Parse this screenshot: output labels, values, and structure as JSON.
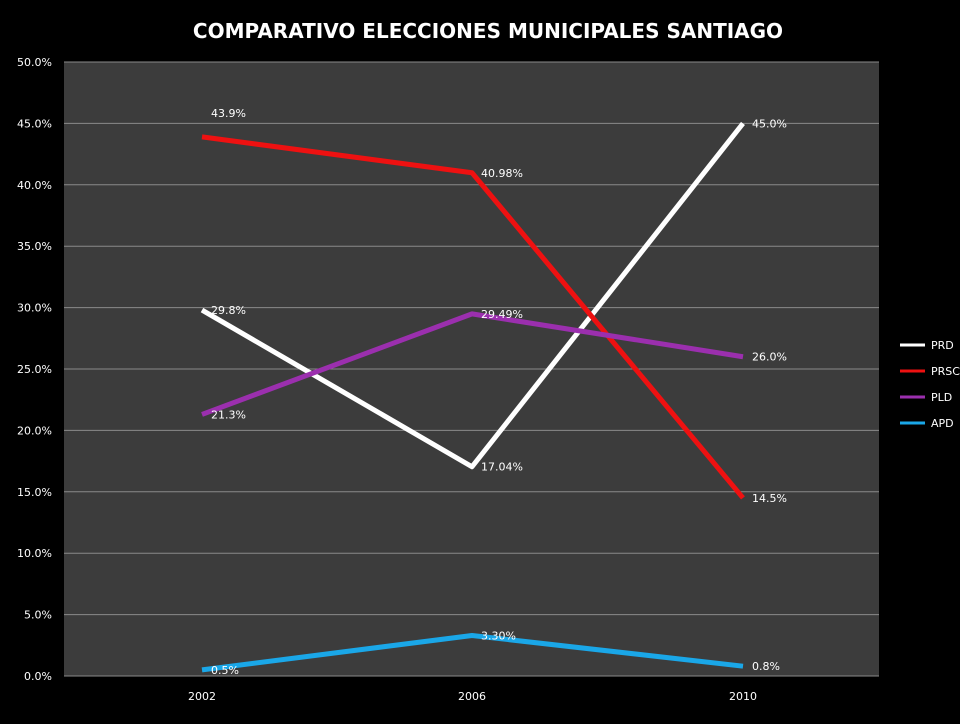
{
  "chart_data": {
    "type": "line",
    "title": "COMPARATIVO ELECCIONES MUNICIPALES SANTIAGO",
    "xlabel": "",
    "ylabel": "",
    "categories": [
      "2002",
      "2006",
      "2010"
    ],
    "ylim": [
      0,
      50
    ],
    "yticks": [
      "0.0%",
      "5.0%",
      "10.0%",
      "15.0%",
      "20.0%",
      "25.0%",
      "30.0%",
      "35.0%",
      "40.0%",
      "45.0%",
      "50.0%"
    ],
    "grid": true,
    "legend_position": "right",
    "plot_background": "#3c3c3c",
    "series": [
      {
        "name": "PRD",
        "color": "#ffffff",
        "values": [
          29.8,
          17.04,
          45.0
        ],
        "labels": [
          "29.8%",
          "17.04%",
          "45.0%"
        ]
      },
      {
        "name": "PRSC",
        "color": "#ee1111",
        "values": [
          43.9,
          40.98,
          14.5
        ],
        "labels": [
          "43.9%",
          "40.98%",
          "14.5%"
        ]
      },
      {
        "name": "PLD",
        "color": "#9b2fae",
        "values": [
          21.3,
          29.49,
          26.0
        ],
        "labels": [
          "21.3%",
          "29.49%",
          "26.0%"
        ]
      },
      {
        "name": "APD",
        "color": "#1aa7e8",
        "values": [
          0.5,
          3.3,
          0.8
        ],
        "labels": [
          "0.5%",
          "3.30%",
          "0.8%"
        ]
      }
    ]
  }
}
